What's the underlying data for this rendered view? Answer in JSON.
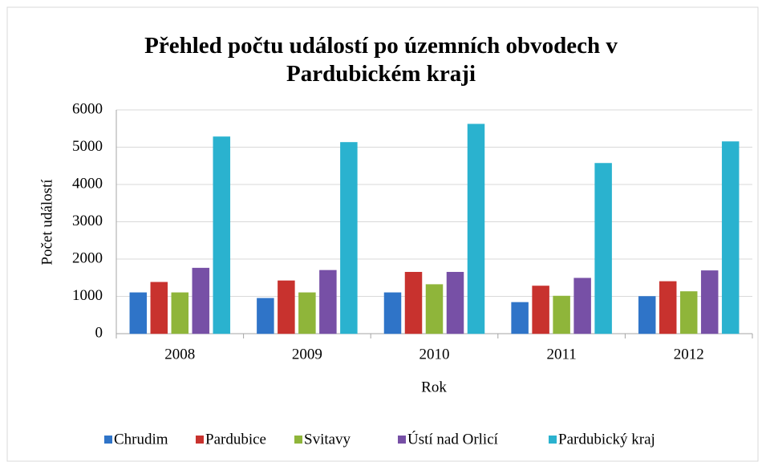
{
  "chart_data": {
    "type": "bar",
    "title": "Přehled počtu událostí po územních obvodech v Pardubickém kraji",
    "x_label": "Rok",
    "y_label": "Počet událostí",
    "categories": [
      "2008",
      "2009",
      "2010",
      "2011",
      "2012"
    ],
    "series": [
      {
        "name": "Chrudim",
        "color": "#2f74c8",
        "values": [
          1100,
          950,
          1100,
          840,
          1000
        ]
      },
      {
        "name": "Pardubice",
        "color": "#c8322e",
        "values": [
          1380,
          1420,
          1650,
          1280,
          1400
        ]
      },
      {
        "name": "Svitavy",
        "color": "#8fb53a",
        "values": [
          1100,
          1100,
          1320,
          1010,
          1130
        ]
      },
      {
        "name": "Ústí nad Orlicí",
        "color": "#7750a6",
        "values": [
          1760,
          1700,
          1650,
          1490,
          1690
        ]
      },
      {
        "name": "Pardubický kraj",
        "color": "#2ab2cf",
        "values": [
          5280,
          5130,
          5620,
          4570,
          5150
        ]
      }
    ],
    "ylim": [
      0,
      6000
    ],
    "yticks": [
      0,
      1000,
      2000,
      3000,
      4000,
      5000,
      6000
    ],
    "grid": true,
    "legend": "bottom"
  }
}
